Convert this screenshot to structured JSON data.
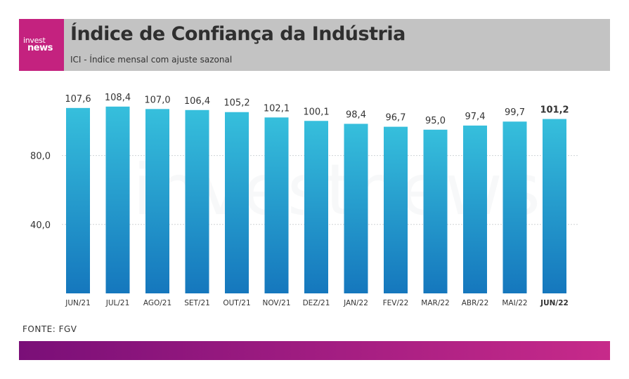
{
  "header": {
    "logo_top": "invest",
    "logo_bottom": "news",
    "title": "Índice de Confiança da Indústria",
    "subtitle": "ICI - Índice mensal com ajuste sazonal"
  },
  "source": "FONTE: FGV",
  "colors": {
    "bar_top": "#36bfdc",
    "bar_bottom": "#1577bd",
    "accent": "#c4227f",
    "footer_left": "#7a0f78",
    "footer_right": "#c72a8a"
  },
  "watermark": "investnews",
  "chart_data": {
    "type": "bar",
    "categories": [
      "JUN/21",
      "JUL/21",
      "AGO/21",
      "SET/21",
      "OUT/21",
      "NOV/21",
      "DEZ/21",
      "JAN/22",
      "FEV/22",
      "MAR/22",
      "ABR/22",
      "MAI/22",
      "JUN/22"
    ],
    "values": [
      107.6,
      108.4,
      107.0,
      106.4,
      105.2,
      102.1,
      100.1,
      98.4,
      96.7,
      95.0,
      97.4,
      99.7,
      101.2
    ],
    "value_labels": [
      "107,6",
      "108,4",
      "107,0",
      "106,4",
      "105,2",
      "102,1",
      "100,1",
      "98,4",
      "96,7",
      "95,0",
      "97,4",
      "99,7",
      "101,2"
    ],
    "highlight_index": 12,
    "yticks": [
      40,
      80
    ],
    "ytick_labels": [
      "40,0",
      "80,0"
    ],
    "ylim": [
      0,
      110
    ],
    "grid": true
  }
}
